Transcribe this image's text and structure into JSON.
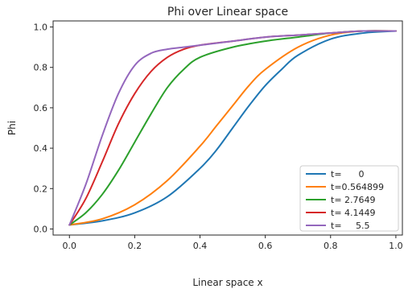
{
  "chart_data": {
    "type": "line",
    "title": "Phi over Linear space",
    "xlabel": "Linear space x",
    "ylabel": "Phi",
    "xlim": [
      -0.05,
      1.02
    ],
    "ylim": [
      -0.03,
      1.03
    ],
    "xticks": [
      0.0,
      0.2,
      0.4,
      0.6,
      0.8,
      1.0
    ],
    "xtick_labels": [
      "0.0",
      "0.2",
      "0.4",
      "0.6",
      "0.8",
      "1.0"
    ],
    "yticks": [
      0.0,
      0.2,
      0.4,
      0.6,
      0.8,
      1.0
    ],
    "ytick_labels": [
      "0.0",
      "0.2",
      "0.4",
      "0.6",
      "0.8",
      "1.0"
    ],
    "grid": false,
    "legend_position": "lower-right",
    "series": [
      {
        "name": "t=      0",
        "color": "#1f77b4",
        "x": [
          0.0,
          0.1,
          0.2,
          0.3,
          0.4,
          0.45,
          0.5,
          0.55,
          0.6,
          0.65,
          0.7,
          0.8,
          0.9,
          1.0
        ],
        "y": [
          0.02,
          0.04,
          0.08,
          0.16,
          0.3,
          0.39,
          0.5,
          0.61,
          0.71,
          0.79,
          0.86,
          0.94,
          0.97,
          0.98
        ]
      },
      {
        "name": "t=0.564899",
        "color": "#ff7f0e",
        "x": [
          0.0,
          0.1,
          0.2,
          0.3,
          0.4,
          0.45,
          0.5,
          0.55,
          0.6,
          0.7,
          0.8,
          0.9,
          1.0
        ],
        "y": [
          0.02,
          0.05,
          0.12,
          0.24,
          0.41,
          0.51,
          0.61,
          0.71,
          0.79,
          0.9,
          0.96,
          0.98,
          0.98
        ]
      },
      {
        "name": "t= 2.7649",
        "color": "#2ca02c",
        "x": [
          0.0,
          0.05,
          0.1,
          0.15,
          0.2,
          0.25,
          0.3,
          0.35,
          0.4,
          0.5,
          0.6,
          0.7,
          0.8,
          0.9,
          1.0
        ],
        "y": [
          0.02,
          0.08,
          0.17,
          0.29,
          0.43,
          0.57,
          0.7,
          0.79,
          0.85,
          0.9,
          0.93,
          0.95,
          0.97,
          0.98,
          0.98
        ]
      },
      {
        "name": "t= 4.1449",
        "color": "#d62728",
        "x": [
          0.0,
          0.05,
          0.1,
          0.15,
          0.2,
          0.25,
          0.3,
          0.35,
          0.4,
          0.5,
          0.6,
          0.7,
          0.8,
          0.9,
          1.0
        ],
        "y": [
          0.02,
          0.15,
          0.33,
          0.52,
          0.67,
          0.78,
          0.85,
          0.89,
          0.91,
          0.93,
          0.95,
          0.96,
          0.97,
          0.98,
          0.98
        ]
      },
      {
        "name": "t=     5.5",
        "color": "#9467bd",
        "x": [
          0.0,
          0.05,
          0.1,
          0.15,
          0.2,
          0.25,
          0.3,
          0.35,
          0.4,
          0.5,
          0.6,
          0.7,
          0.8,
          0.9,
          1.0
        ],
        "y": [
          0.02,
          0.22,
          0.46,
          0.67,
          0.81,
          0.87,
          0.89,
          0.9,
          0.91,
          0.93,
          0.95,
          0.96,
          0.97,
          0.98,
          0.98
        ]
      }
    ]
  }
}
